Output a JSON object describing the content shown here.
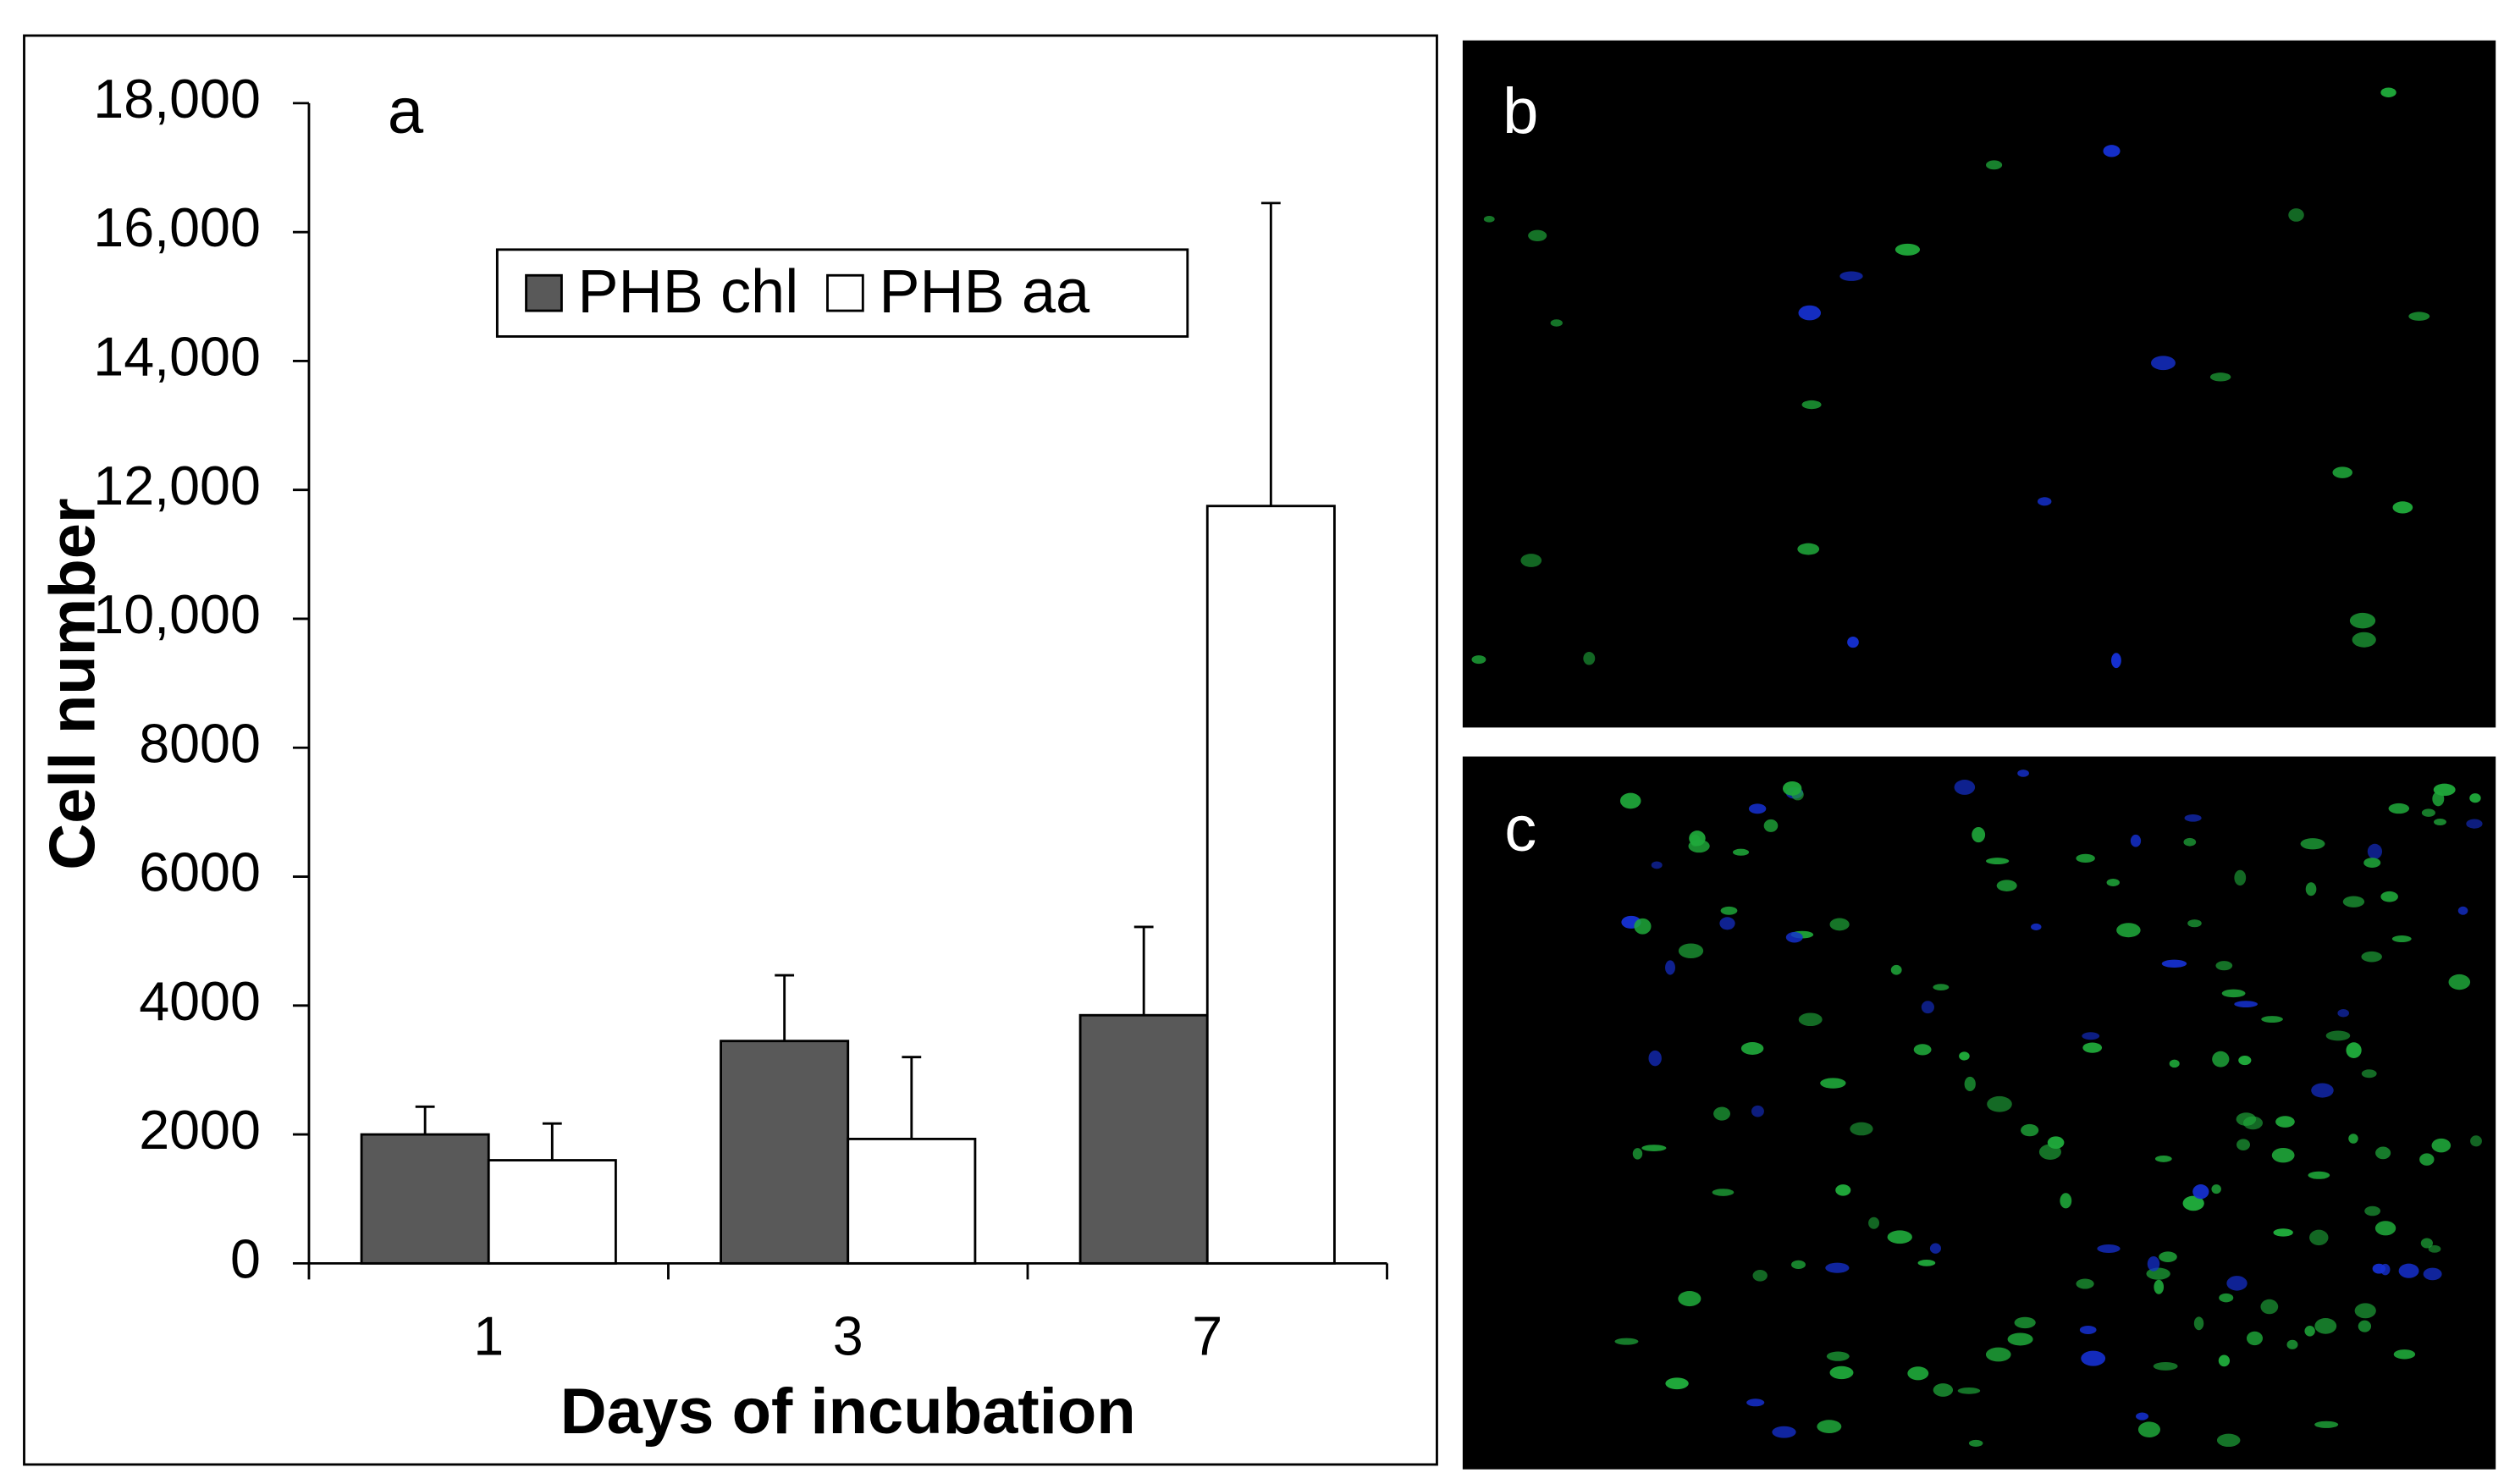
{
  "chart_data": {
    "type": "bar",
    "panel_label": "a",
    "x_label": "Days of incubation",
    "y_label": "Cell number",
    "categories": [
      "1",
      "3",
      "7"
    ],
    "series": [
      {
        "name": "PHB chl",
        "color": "#595959",
        "values": [
          2000,
          3450,
          3850
        ],
        "errors": [
          430,
          1020,
          1370
        ]
      },
      {
        "name": "PHB aa",
        "color": "#ffffff",
        "values": [
          1600,
          1930,
          11750
        ],
        "errors": [
          570,
          1270,
          4700
        ]
      }
    ],
    "ylim": [
      0,
      18000
    ],
    "yticks": [
      0,
      2000,
      4000,
      6000,
      8000,
      {
        "value": 10000,
        "label": "10,000"
      },
      {
        "value": 12000,
        "label": "12,000"
      },
      {
        "value": 14000,
        "label": "14,000"
      },
      {
        "value": 16000,
        "label": "16,000"
      },
      {
        "value": 18000,
        "label": "18,000"
      }
    ],
    "grid": false,
    "legend": "top"
  },
  "images": [
    {
      "label": "b"
    },
    {
      "label": "c"
    }
  ]
}
